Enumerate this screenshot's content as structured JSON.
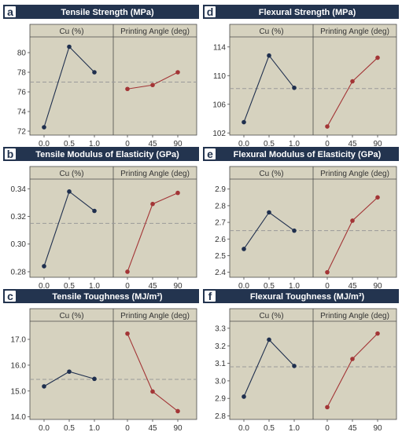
{
  "colors": {
    "cu_series": "#1f2f4e",
    "angle_series": "#a33536",
    "panel_background": "#d6d2bf",
    "title_bar": "#23344f",
    "mean_line": "#9a9a9a"
  },
  "chart_data": [
    {
      "type": "line",
      "letter": "a",
      "title": "Tensile Strength (MPa)",
      "mean": 77.0,
      "ylim": [
        71.6,
        81.6
      ],
      "yticks": [
        "72",
        "74",
        "76",
        "78",
        "80"
      ],
      "strips": [
        "Cu (%)",
        "Printing Angle (deg)"
      ],
      "series": [
        {
          "name": "Cu (%)",
          "x": [
            "0.0",
            "0.5",
            "1.0"
          ],
          "values": [
            72.4,
            80.6,
            78.0
          ]
        },
        {
          "name": "Printing Angle (deg)",
          "x": [
            "0",
            "45",
            "90"
          ],
          "values": [
            76.3,
            76.7,
            78.0
          ]
        }
      ]
    },
    {
      "type": "line",
      "letter": "d",
      "title": "Flexural Strength (MPa)",
      "mean": 108.2,
      "ylim": [
        101.7,
        115.4
      ],
      "yticks": [
        "102",
        "106",
        "110",
        "114"
      ],
      "strips": [
        "Cu (%)",
        "Printing Angle (deg)"
      ],
      "series": [
        {
          "name": "Cu (%)",
          "x": [
            "0.0",
            "0.5",
            "1.0"
          ],
          "values": [
            103.5,
            112.8,
            108.3
          ]
        },
        {
          "name": "Printing Angle (deg)",
          "x": [
            "0",
            "45",
            "90"
          ],
          "values": [
            102.9,
            109.2,
            112.5
          ]
        }
      ]
    },
    {
      "type": "line",
      "letter": "b",
      "title": "Tensile Modulus of Elasticity (GPa)",
      "mean": 0.315,
      "ylim": [
        0.276,
        0.347
      ],
      "yticks": [
        "0.28",
        "0.30",
        "0.32",
        "0.34"
      ],
      "strips": [
        "Cu (%)",
        "Printing Angle (deg)"
      ],
      "series": [
        {
          "name": "Cu (%)",
          "x": [
            "0.0",
            "0.5",
            "1.0"
          ],
          "values": [
            0.284,
            0.338,
            0.324
          ]
        },
        {
          "name": "Printing Angle (deg)",
          "x": [
            "0",
            "45",
            "90"
          ],
          "values": [
            0.28,
            0.329,
            0.337
          ]
        }
      ]
    },
    {
      "type": "line",
      "letter": "e",
      "title": "Flexural Modulus of Elasticity (GPa)",
      "mean": 2.65,
      "ylim": [
        2.37,
        2.96
      ],
      "yticks": [
        "2.4",
        "2.5",
        "2.6",
        "2.7",
        "2.8",
        "2.9"
      ],
      "strips": [
        "Cu (%)",
        "Printing Angle (deg)"
      ],
      "series": [
        {
          "name": "Cu (%)",
          "x": [
            "0.0",
            "0.5",
            "1.0"
          ],
          "values": [
            2.54,
            2.76,
            2.65
          ]
        },
        {
          "name": "Printing Angle (deg)",
          "x": [
            "0",
            "45",
            "90"
          ],
          "values": [
            2.4,
            2.71,
            2.85
          ]
        }
      ]
    },
    {
      "type": "line",
      "letter": "c",
      "title": "Tensile Toughness (MJ/m³)",
      "mean": 15.45,
      "ylim": [
        13.9,
        17.7
      ],
      "yticks": [
        "14.0",
        "15.0",
        "16.0",
        "17.0"
      ],
      "strips": [
        "Cu (%)",
        "Printing Angle (deg)"
      ],
      "series": [
        {
          "name": "Cu (%)",
          "x": [
            "0.0",
            "0.5",
            "1.0"
          ],
          "values": [
            15.18,
            15.75,
            15.47
          ]
        },
        {
          "name": "Printing Angle (deg)",
          "x": [
            "0",
            "45",
            "90"
          ],
          "values": [
            17.22,
            14.98,
            14.22
          ]
        }
      ]
    },
    {
      "type": "line",
      "letter": "f",
      "title": "Flexural Toughness (MJ/m³)",
      "mean": 3.08,
      "ylim": [
        2.78,
        3.34
      ],
      "yticks": [
        "2.8",
        "2.9",
        "3.0",
        "3.1",
        "3.2",
        "3.3"
      ],
      "strips": [
        "Cu (%)",
        "Printing Angle (deg)"
      ],
      "series": [
        {
          "name": "Cu (%)",
          "x": [
            "0.0",
            "0.5",
            "1.0"
          ],
          "values": [
            2.91,
            3.235,
            3.085
          ]
        },
        {
          "name": "Printing Angle (deg)",
          "x": [
            "0",
            "45",
            "90"
          ],
          "values": [
            2.85,
            3.125,
            3.27
          ]
        }
      ]
    }
  ]
}
